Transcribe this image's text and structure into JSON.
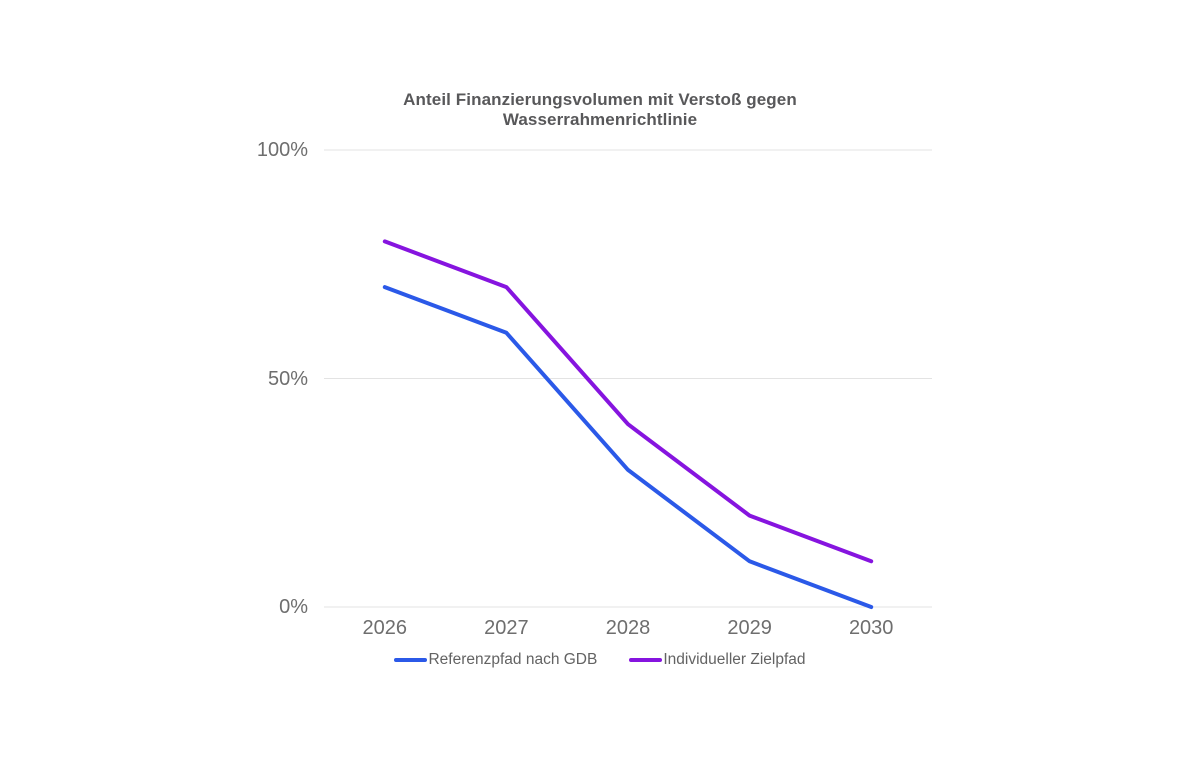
{
  "chart": {
    "title_line1": "Anteil Finanzierungsvolumen mit Verstoß gegen",
    "title_line2": "Wasserrahmenrichtlinie"
  },
  "chart_data": {
    "type": "line",
    "title": "Anteil Finanzierungsvolumen mit Verstoß gegen Wasserrahmenrichtlinie",
    "categories": [
      "2026",
      "2027",
      "2028",
      "2029",
      "2030"
    ],
    "series": [
      {
        "name": "Referenzpfad nach GDB",
        "color": "#2B59E8",
        "values": [
          70,
          60,
          30,
          10,
          0
        ]
      },
      {
        "name": "Individueller Zielpfad",
        "color": "#8614DF",
        "values": [
          80,
          70,
          40,
          20,
          10
        ]
      }
    ],
    "xlabel": "",
    "ylabel": "",
    "ylim": [
      0,
      100
    ],
    "y_ticks": [
      {
        "value": 100,
        "label": "100%"
      },
      {
        "value": 50,
        "label": "50%"
      },
      {
        "value": 0,
        "label": "0%"
      }
    ],
    "grid": true,
    "legend_position": "bottom"
  },
  "colors": {
    "background": "#ffffff",
    "gridline": "#e3e3e3",
    "axis_text": "#6e6e6e",
    "title_text": "#58585a",
    "legend_text": "#636363"
  }
}
